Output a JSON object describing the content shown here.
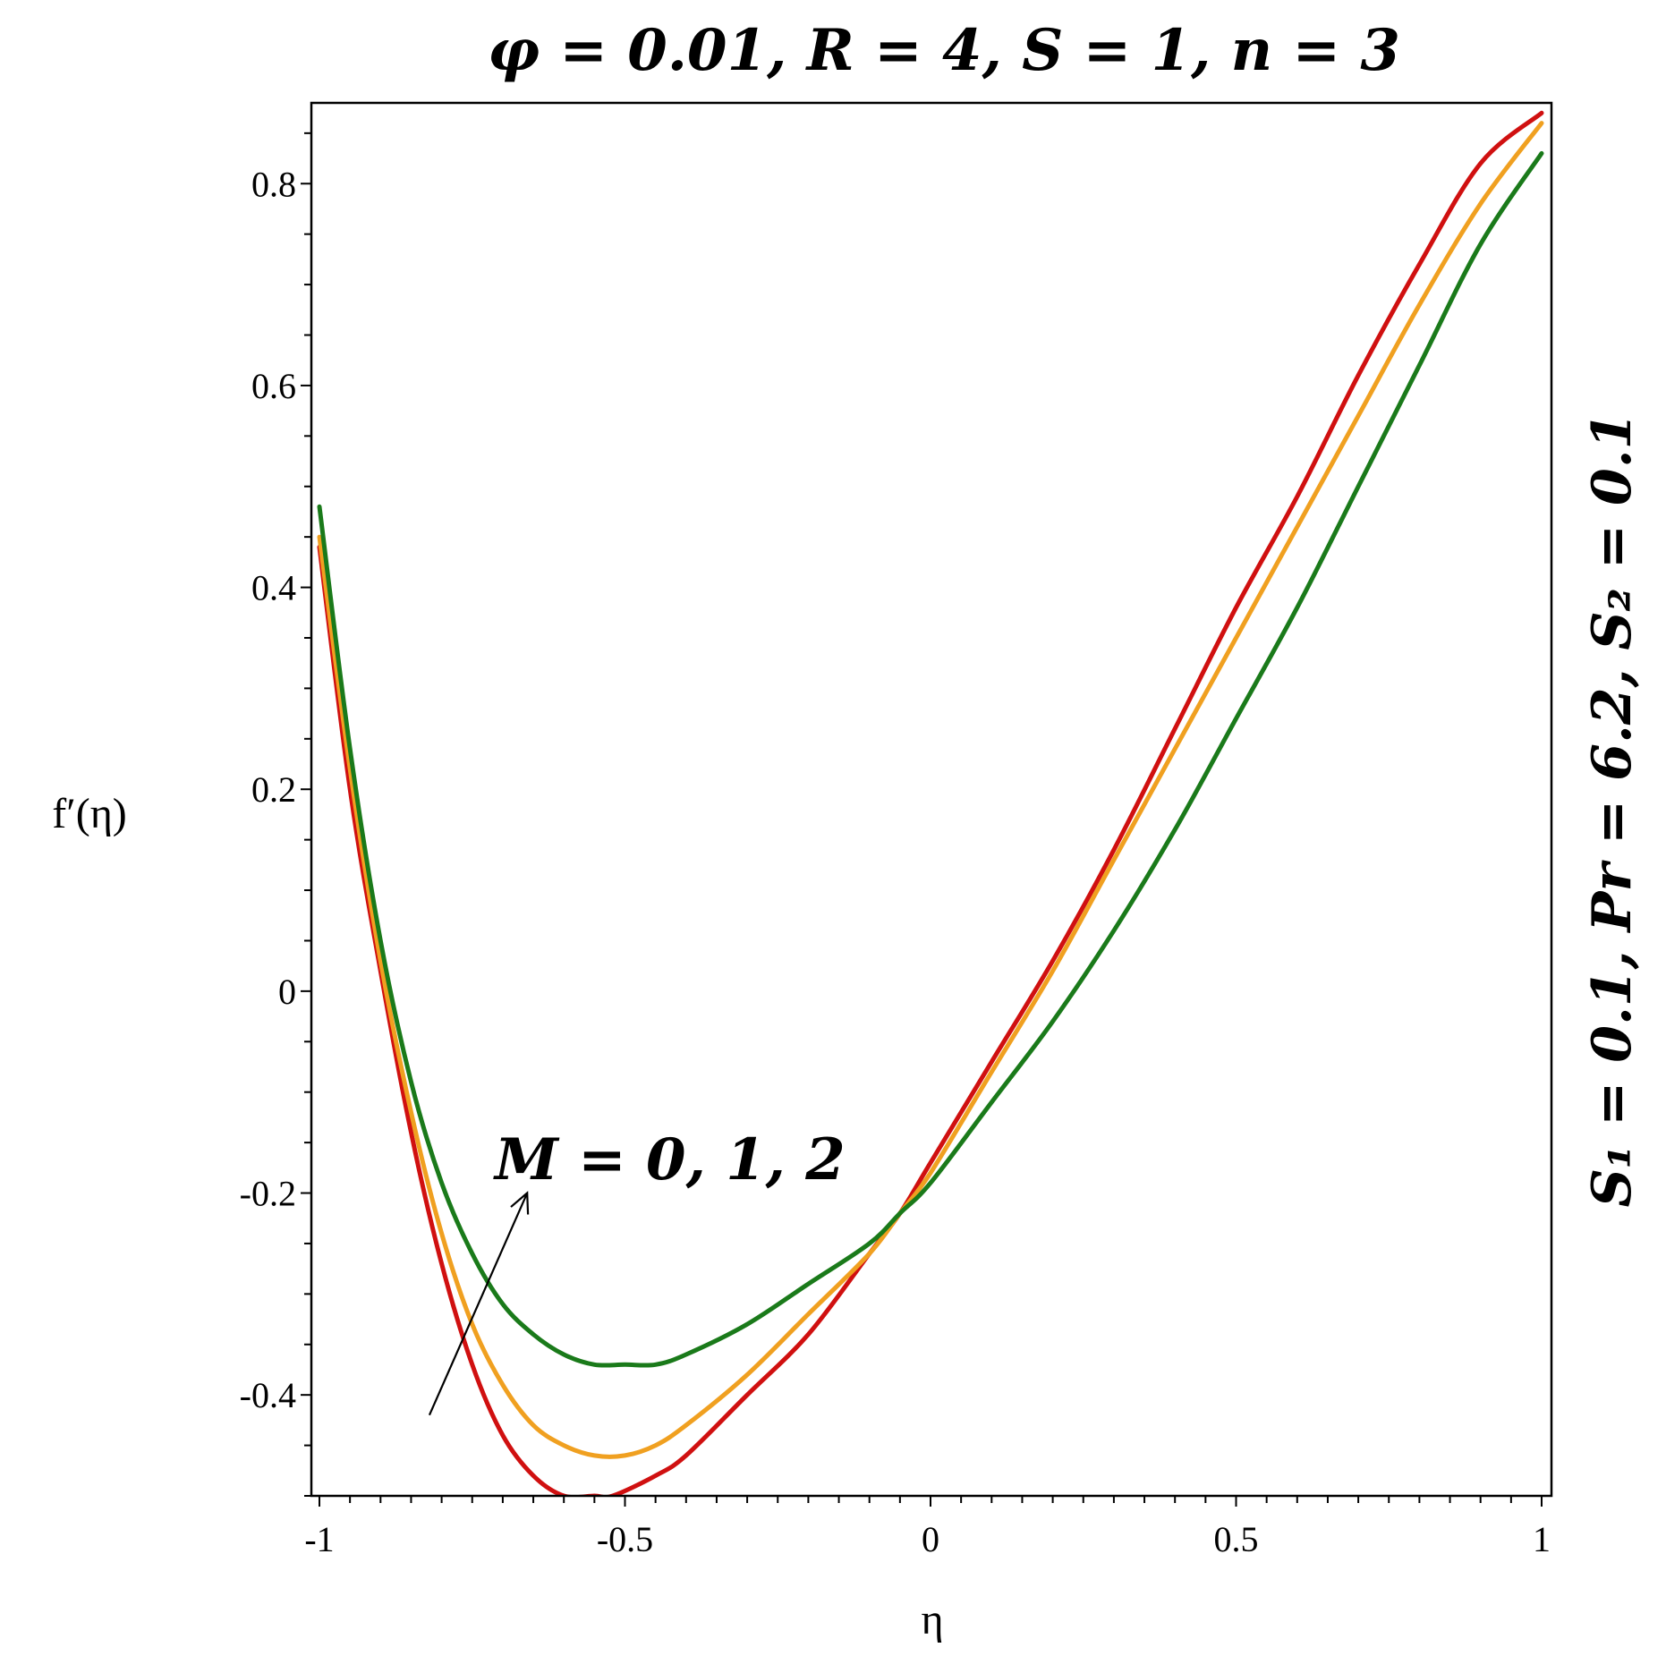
{
  "chart_data": {
    "type": "line",
    "title": "φ = 0.01, R = 4, S = 1, n = 3",
    "side_label": "S₁ = 0.1, Pr = 6.2, S₂ = 0.1",
    "xlabel": "η",
    "ylabel": "f′(η)",
    "xlim": [
      -1,
      1
    ],
    "ylim": [
      -0.5,
      0.88
    ],
    "x_ticks": [
      -1,
      -0.5,
      0,
      0.5,
      1
    ],
    "x_tick_labels": [
      "-1",
      "-0.5",
      "0",
      "0.5",
      "1"
    ],
    "y_ticks": [
      -0.4,
      -0.2,
      0,
      0.2,
      0.4,
      0.6,
      0.8
    ],
    "y_tick_labels": [
      "-0.4",
      "-0.2",
      "0",
      "0.2",
      "0.4",
      "0.6",
      "0.8"
    ],
    "grid": false,
    "annotation": {
      "text": "M = 0, 1, 2",
      "arrow_from": [
        -0.82,
        -0.42
      ],
      "arrow_to": [
        -0.66,
        -0.2
      ]
    },
    "series": [
      {
        "color": "#d01010",
        "x": [
          -1,
          -0.95,
          -0.9,
          -0.85,
          -0.8,
          -0.75,
          -0.7,
          -0.65,
          -0.6,
          -0.55,
          -0.52,
          -0.45,
          -0.4,
          -0.3,
          -0.2,
          -0.1,
          -0.05,
          0,
          0.1,
          0.2,
          0.3,
          0.4,
          0.5,
          0.6,
          0.7,
          0.8,
          0.9,
          1.0
        ],
        "y": [
          0.44,
          0.2,
          0.02,
          -0.14,
          -0.27,
          -0.37,
          -0.44,
          -0.48,
          -0.5,
          -0.5,
          -0.5,
          -0.48,
          -0.46,
          -0.4,
          -0.34,
          -0.26,
          -0.22,
          -0.17,
          -0.07,
          0.03,
          0.14,
          0.26,
          0.38,
          0.49,
          0.61,
          0.72,
          0.82,
          0.87
        ]
      },
      {
        "color": "#f0a020",
        "x": [
          -1,
          -0.95,
          -0.9,
          -0.85,
          -0.8,
          -0.75,
          -0.7,
          -0.65,
          -0.6,
          -0.55,
          -0.5,
          -0.45,
          -0.4,
          -0.3,
          -0.2,
          -0.1,
          -0.05,
          0,
          0.1,
          0.2,
          0.3,
          0.4,
          0.5,
          0.6,
          0.7,
          0.8,
          0.9,
          1.0
        ],
        "y": [
          0.45,
          0.22,
          0.03,
          -0.12,
          -0.24,
          -0.33,
          -0.39,
          -0.43,
          -0.45,
          -0.46,
          -0.46,
          -0.45,
          -0.43,
          -0.38,
          -0.32,
          -0.26,
          -0.22,
          -0.18,
          -0.08,
          0.02,
          0.13,
          0.24,
          0.35,
          0.46,
          0.57,
          0.68,
          0.78,
          0.86
        ]
      },
      {
        "color": "#1a7a1a",
        "x": [
          -1,
          -0.95,
          -0.9,
          -0.85,
          -0.8,
          -0.75,
          -0.7,
          -0.65,
          -0.6,
          -0.55,
          -0.5,
          -0.45,
          -0.4,
          -0.3,
          -0.2,
          -0.1,
          -0.05,
          0,
          0.1,
          0.2,
          0.3,
          0.4,
          0.5,
          0.6,
          0.7,
          0.8,
          0.9,
          1.0
        ],
        "y": [
          0.48,
          0.24,
          0.05,
          -0.09,
          -0.19,
          -0.26,
          -0.31,
          -0.34,
          -0.36,
          -0.37,
          -0.37,
          -0.37,
          -0.36,
          -0.33,
          -0.29,
          -0.25,
          -0.22,
          -0.19,
          -0.11,
          -0.03,
          0.06,
          0.16,
          0.27,
          0.38,
          0.5,
          0.62,
          0.74,
          0.83
        ]
      }
    ]
  }
}
